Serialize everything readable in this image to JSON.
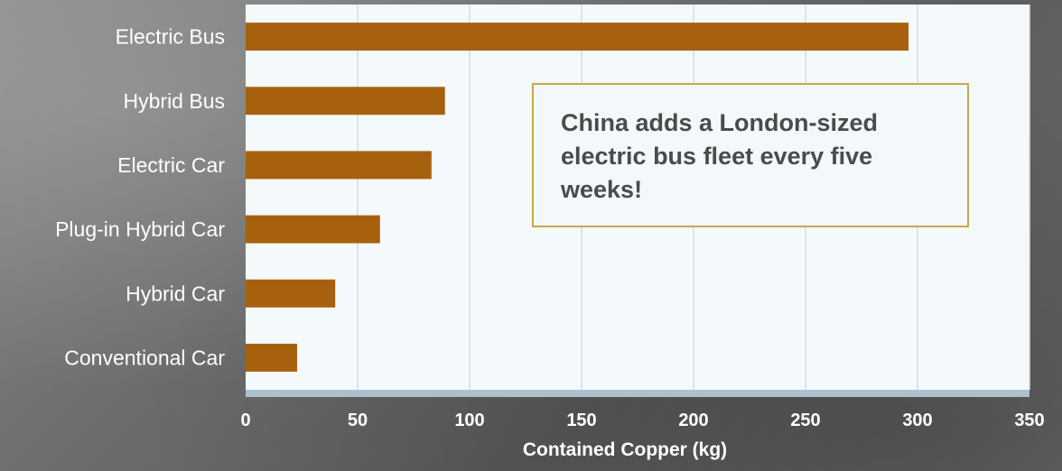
{
  "chart_data": {
    "type": "bar",
    "orientation": "horizontal",
    "categories": [
      "Electric Bus",
      "Hybrid Bus",
      "Electric Car",
      "Plug-in Hybrid Car",
      "Hybrid Car",
      "Conventional Car"
    ],
    "values": [
      296,
      89,
      83,
      60,
      40,
      23
    ],
    "xlabel": "Contained Copper (kg)",
    "xlim": [
      0,
      350
    ],
    "xticks": [
      "0",
      "50",
      "100",
      "150",
      "200",
      "250",
      "300",
      "350"
    ],
    "grid": true,
    "bar_color": "#a7610e",
    "annotation": "China adds a London-sized electric bus fleet every five weeks!"
  }
}
